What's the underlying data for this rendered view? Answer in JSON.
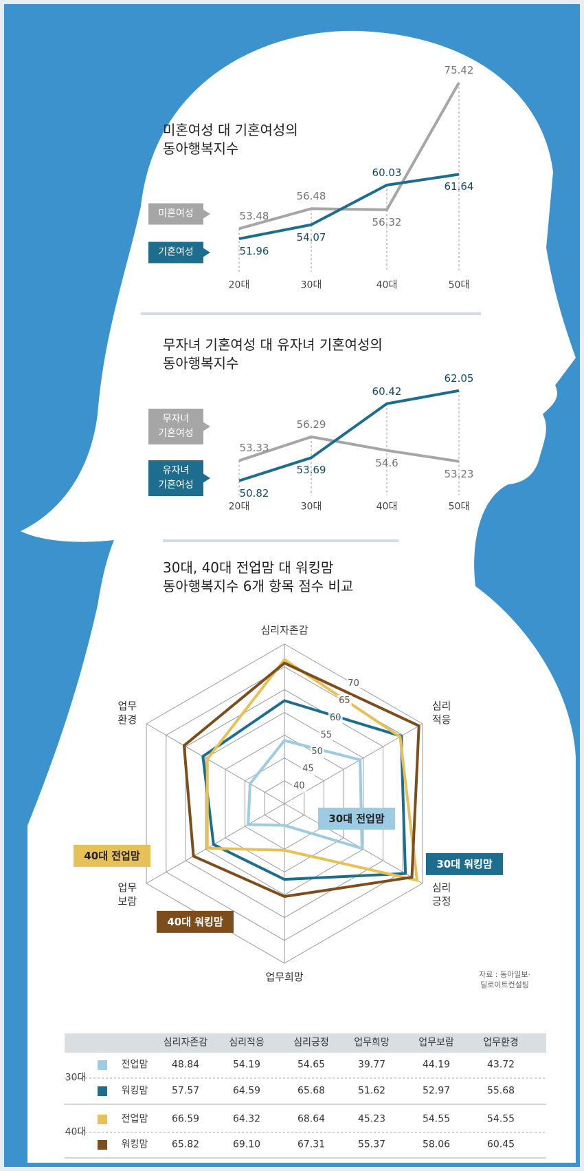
{
  "chart_data": [
    {
      "type": "line",
      "title": "미혼여성 대 기혼여성의\n동아행복지수",
      "categories": [
        "20대",
        "30대",
        "40대",
        "50대"
      ],
      "series": [
        {
          "name": "미혼여성",
          "color": "#a6a6a6",
          "values": [
            53.48,
            56.48,
            56.32,
            75.42
          ]
        },
        {
          "name": "기혼여성",
          "color": "#1d6e8e",
          "values": [
            51.96,
            54.07,
            60.03,
            61.64
          ]
        }
      ],
      "ylim": [
        47,
        77.5
      ]
    },
    {
      "type": "line",
      "title": "무자녀 기혼여성 대 유자녀 기혼여성의\n동아행복지수",
      "categories": [
        "20대",
        "30대",
        "40대",
        "50대"
      ],
      "series": [
        {
          "name": "무자녀\n기혼여성",
          "color": "#a6a6a6",
          "values": [
            53.33,
            56.29,
            54.6,
            53.23
          ]
        },
        {
          "name": "유자녀\n기혼여성",
          "color": "#1d6e8e",
          "values": [
            50.82,
            53.69,
            60.42,
            62.05
          ]
        }
      ],
      "ylim": [
        49,
        64
      ]
    },
    {
      "type": "radar",
      "title": "30대, 40대 전업맘 대 워킹맘\n동아행복지수 6개 항목 점수 비교",
      "categories": [
        "심리자존감",
        "심리\n적응",
        "심리\n긍정",
        "업무희망",
        "업무\n보람",
        "업무\n환경"
      ],
      "series": [
        {
          "name": "30대 전업맘",
          "color": "#9ccbe3",
          "values": [
            48.84,
            54.19,
            54.65,
            39.77,
            44.19,
            43.72
          ]
        },
        {
          "name": "30대 워킹맘",
          "color": "#1d6e8e",
          "values": [
            57.57,
            64.59,
            65.68,
            51.62,
            52.97,
            55.68
          ]
        },
        {
          "name": "40대 전업맘",
          "color": "#e5c158",
          "values": [
            66.59,
            64.32,
            68.64,
            45.23,
            54.55,
            54.55
          ]
        },
        {
          "name": "40대 워킹맘",
          "color": "#7d4e1c",
          "values": [
            65.82,
            69.1,
            67.31,
            55.37,
            58.06,
            60.45
          ],
          "value_labels": [
            "65.82",
            "69.10",
            "67.31",
            "55.37",
            "58.06",
            "60.45"
          ]
        }
      ],
      "rlim": [
        35,
        70
      ],
      "rticks": [
        40,
        45,
        50,
        55,
        60,
        65,
        70
      ],
      "source": "자료 : 동아일보·딜로이트컨설팅"
    }
  ],
  "table": {
    "columns": [
      "심리자존감",
      "심리적응",
      "심리긍정",
      "업무희망",
      "업무보람",
      "업무환경"
    ],
    "groups": [
      {
        "label": "30대",
        "rows": [
          "전업맘",
          "워킹맘"
        ]
      },
      {
        "label": "40대",
        "rows": [
          "전업맘",
          "워킹맘"
        ]
      }
    ]
  }
}
